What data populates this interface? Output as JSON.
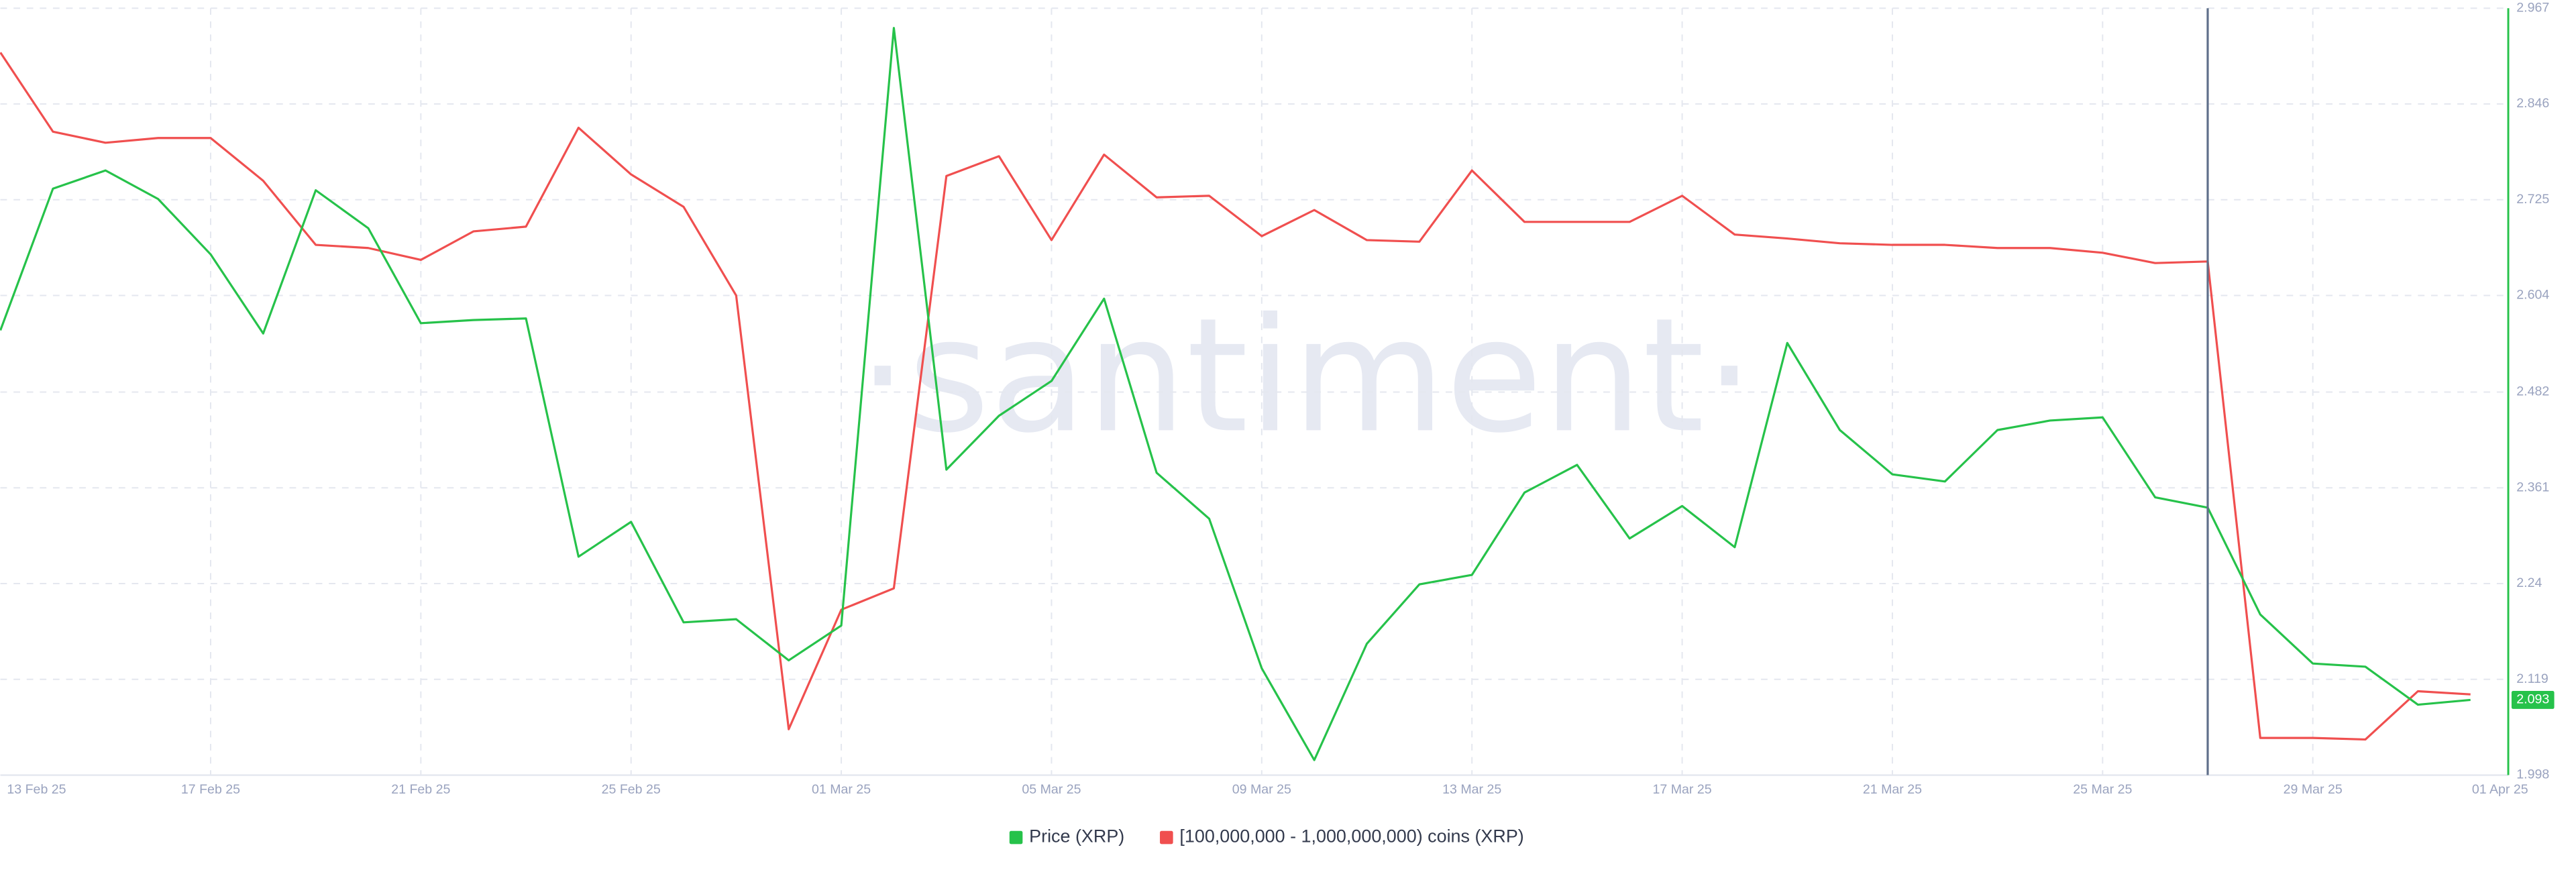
{
  "chart_data": {
    "type": "line",
    "watermark": "·santiment·",
    "x": [
      "2025-02-13",
      "2025-02-14",
      "2025-02-15",
      "2025-02-16",
      "2025-02-17",
      "2025-02-18",
      "2025-02-19",
      "2025-02-20",
      "2025-02-21",
      "2025-02-22",
      "2025-02-23",
      "2025-02-24",
      "2025-02-25",
      "2025-02-26",
      "2025-02-27",
      "2025-02-28",
      "2025-03-01",
      "2025-03-02",
      "2025-03-03",
      "2025-03-04",
      "2025-03-05",
      "2025-03-06",
      "2025-03-07",
      "2025-03-08",
      "2025-03-09",
      "2025-03-10",
      "2025-03-11",
      "2025-03-12",
      "2025-03-13",
      "2025-03-14",
      "2025-03-15",
      "2025-03-16",
      "2025-03-17",
      "2025-03-18",
      "2025-03-19",
      "2025-03-20",
      "2025-03-21",
      "2025-03-22",
      "2025-03-23",
      "2025-03-24",
      "2025-03-25",
      "2025-03-26",
      "2025-03-27",
      "2025-03-28",
      "2025-03-29",
      "2025-03-30",
      "2025-03-31",
      "2025-04-01"
    ],
    "xticks": [
      {
        "value": "2025-02-13",
        "label": "13 Feb 25"
      },
      {
        "value": "2025-02-17",
        "label": "17 Feb 25"
      },
      {
        "value": "2025-02-21",
        "label": "21 Feb 25"
      },
      {
        "value": "2025-02-25",
        "label": "25 Feb 25"
      },
      {
        "value": "2025-03-01",
        "label": "01 Mar 25"
      },
      {
        "value": "2025-03-05",
        "label": "05 Mar 25"
      },
      {
        "value": "2025-03-09",
        "label": "09 Mar 25"
      },
      {
        "value": "2025-03-13",
        "label": "13 Mar 25"
      },
      {
        "value": "2025-03-17",
        "label": "17 Mar 25"
      },
      {
        "value": "2025-03-21",
        "label": "21 Mar 25"
      },
      {
        "value": "2025-03-25",
        "label": "25 Mar 25"
      },
      {
        "value": "2025-03-29",
        "label": "29 Mar 25"
      },
      {
        "value": "2025-04-01",
        "label": "01 Apr 25"
      }
    ],
    "ylim": [
      1.998,
      2.967
    ],
    "yticks": [
      1.998,
      2.119,
      2.24,
      2.361,
      2.482,
      2.604,
      2.725,
      2.846,
      2.967
    ],
    "grid": true,
    "highlight_x": "2025-03-27",
    "legend": "bottom",
    "series": [
      {
        "name": "Price (XRP)",
        "color": "#26c24a",
        "values": [
          2.56,
          2.739,
          2.762,
          2.726,
          2.656,
          2.556,
          2.737,
          2.689,
          2.569,
          2.573,
          2.575,
          2.274,
          2.318,
          2.191,
          2.195,
          2.143,
          2.187,
          2.942,
          2.384,
          2.452,
          2.496,
          2.6,
          2.38,
          2.322,
          2.133,
          2.017,
          2.164,
          2.239,
          2.251,
          2.355,
          2.39,
          2.297,
          2.338,
          2.286,
          2.544,
          2.434,
          2.378,
          2.369,
          2.434,
          2.446,
          2.45,
          2.349,
          2.336,
          2.201,
          2.139,
          2.135,
          2.087,
          2.093
        ]
      },
      {
        "name": "[100,000,000 - 1,000,000,000) coins (XRP)",
        "color": "#f04f4f",
        "values": [
          2.911,
          2.811,
          2.797,
          2.803,
          2.803,
          2.749,
          2.668,
          2.664,
          2.649,
          2.685,
          2.691,
          2.816,
          2.757,
          2.716,
          2.604,
          2.056,
          2.207,
          2.234,
          2.755,
          2.78,
          2.674,
          2.782,
          2.728,
          2.73,
          2.679,
          2.712,
          2.674,
          2.672,
          2.762,
          2.697,
          2.697,
          2.697,
          2.73,
          2.681,
          2.676,
          2.67,
          2.668,
          2.668,
          2.664,
          2.664,
          2.658,
          2.645,
          2.647,
          2.045,
          2.045,
          2.043,
          2.104,
          2.1
        ]
      }
    ]
  }
}
